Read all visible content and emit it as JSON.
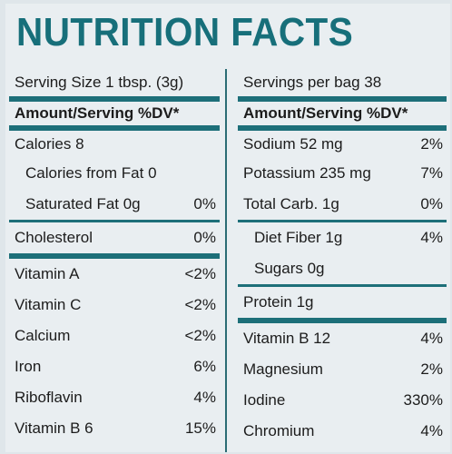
{
  "title": "NUTRITION FACTS",
  "left": {
    "serving": "Serving Size 1 tbsp. (3g)",
    "amount_header": "Amount/Serving %DV*",
    "rows": [
      {
        "name": "Calories 8",
        "value": ""
      },
      {
        "name": "Calories from Fat 0",
        "value": ""
      },
      {
        "name": "Saturated Fat 0g",
        "value": "0%"
      },
      {
        "name": "Cholesterol",
        "value": "0%"
      },
      {
        "name": "Vitamin A",
        "value": "<2%"
      },
      {
        "name": "Vitamin C",
        "value": "<2%"
      },
      {
        "name": "Calcium",
        "value": "<2%"
      },
      {
        "name": "Iron",
        "value": "6%"
      },
      {
        "name": "Riboflavin",
        "value": "4%"
      },
      {
        "name": "Vitamin B 6",
        "value": "15%"
      }
    ]
  },
  "right": {
    "serving": "Servings per bag 38",
    "amount_header": "Amount/Serving %DV*",
    "rows": [
      {
        "name": "Sodium 52 mg",
        "value": "2%"
      },
      {
        "name": "Potassium 235 mg",
        "value": "7%"
      },
      {
        "name": "Total Carb. 1g",
        "value": "0%"
      },
      {
        "name": "Diet Fiber 1g",
        "value": "4%"
      },
      {
        "name": "Sugars 0g",
        "value": ""
      },
      {
        "name": "Protein 1g",
        "value": ""
      },
      {
        "name": "Vitamin B 12",
        "value": "4%"
      },
      {
        "name": "Magnesium",
        "value": "2%"
      },
      {
        "name": "Iodine",
        "value": "330%"
      },
      {
        "name": "Chromium",
        "value": "4%"
      }
    ]
  }
}
